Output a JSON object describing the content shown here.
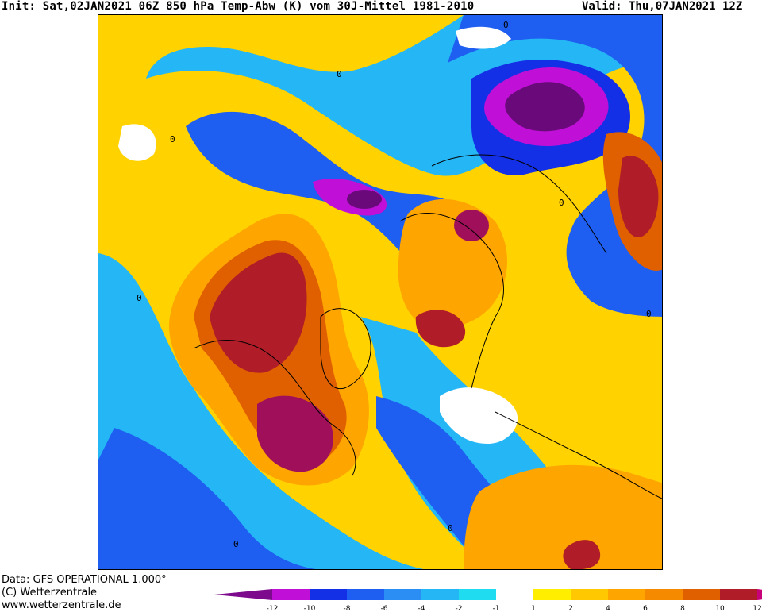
{
  "header": {
    "init": "Init: Sat,02JAN2021 06Z 850 hPa Temp-Abw (K) vom 30J-Mittel 1981-2010",
    "valid": "Valid: Thu,07JAN2021 12Z"
  },
  "footer": {
    "data_line": "Data: GFS OPERATIONAL 1.000°",
    "copyright": "(C) Wetterzentrale",
    "website": "www.wetterzentrale.de"
  },
  "map": {
    "contour_label": "0"
  },
  "legend": {
    "ticks": [
      "-12",
      "-10",
      "-8",
      "-6",
      "-4",
      "-2",
      "-1",
      "1",
      "2",
      "4",
      "6",
      "8",
      "10",
      "12"
    ],
    "colors": [
      "#7d0a8c",
      "#c010d8",
      "#1430e6",
      "#1e5ef0",
      "#2a8ef5",
      "#25b6f5",
      "#20dcf0",
      "#ffffff",
      "#ffee00",
      "#ffc800",
      "#ffa500",
      "#f58a00",
      "#e06000",
      "#b01c28",
      "#c8007a"
    ]
  },
  "palette": {
    "dark_purple": "#6a0a7a",
    "magenta": "#c010d8",
    "deep_blue": "#1430e6",
    "blue": "#1e5ef0",
    "mid_blue": "#2a8ef5",
    "light_blue": "#25b6f5",
    "cyan": "#20dcf0",
    "yellow": "#ffee00",
    "gold": "#ffc800",
    "orange": "#ffa500",
    "dark_orange": "#e06000",
    "red": "#b01c28",
    "crimson": "#a0105a"
  }
}
